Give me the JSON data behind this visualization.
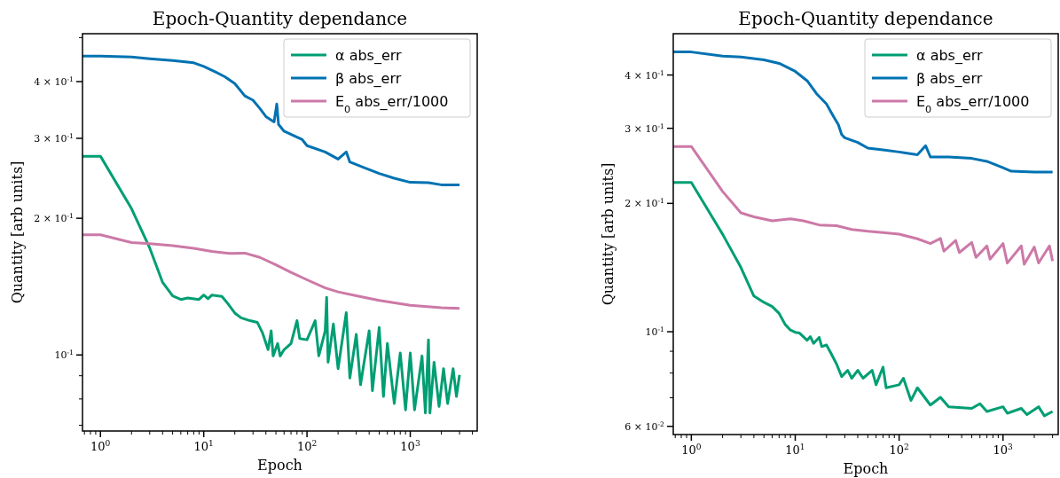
{
  "chart_data": [
    {
      "type": "line",
      "title": "Epoch-Quantity dependance",
      "xlabel": "Epoch",
      "ylabel": "Quantity [arb units]",
      "log": "xy",
      "legend": "top right",
      "xlim": [
        0.67,
        4450
      ],
      "ylim": [
        0.068,
        0.51
      ],
      "xticks": [
        {
          "value": 0.7,
          "label": null
        },
        {
          "value": 0.8,
          "label": null
        },
        {
          "value": 0.9,
          "label": null
        },
        {
          "value": 1,
          "label": "10$^{0}$"
        },
        {
          "value": 2,
          "label": null
        },
        {
          "value": 3,
          "label": null
        },
        {
          "value": 4,
          "label": null
        },
        {
          "value": 5,
          "label": null
        },
        {
          "value": 6,
          "label": null
        },
        {
          "value": 7,
          "label": null
        },
        {
          "value": 8,
          "label": null
        },
        {
          "value": 9,
          "label": null
        },
        {
          "value": 10,
          "label": "10$^{1}$"
        },
        {
          "value": 20,
          "label": null
        },
        {
          "value": 30,
          "label": null
        },
        {
          "value": 40,
          "label": null
        },
        {
          "value": 50,
          "label": null
        },
        {
          "value": 60,
          "label": null
        },
        {
          "value": 70,
          "label": null
        },
        {
          "value": 80,
          "label": null
        },
        {
          "value": 90,
          "label": null
        },
        {
          "value": 100,
          "label": "10$^{2}$"
        },
        {
          "value": 200,
          "label": null
        },
        {
          "value": 300,
          "label": null
        },
        {
          "value": 400,
          "label": null
        },
        {
          "value": 500,
          "label": null
        },
        {
          "value": 600,
          "label": null
        },
        {
          "value": 700,
          "label": null
        },
        {
          "value": 800,
          "label": null
        },
        {
          "value": 900,
          "label": null
        },
        {
          "value": 1000,
          "label": "10$^{3}$"
        },
        {
          "value": 2000,
          "label": null
        },
        {
          "value": 3000,
          "label": null
        },
        {
          "value": 4000,
          "label": null
        }
      ],
      "yticks": [
        {
          "value": 0.07,
          "label": null
        },
        {
          "value": 0.08,
          "label": null
        },
        {
          "value": 0.09,
          "label": null
        },
        {
          "value": 0.1,
          "label": "10$^{-1}$"
        },
        {
          "value": 0.2,
          "label": "2 × 10$^{-1}$"
        },
        {
          "value": 0.3,
          "label": "3 × 10$^{-1}$"
        },
        {
          "value": 0.4,
          "label": "4 × 10$^{-1}$"
        },
        {
          "value": 0.5,
          "label": null
        }
      ],
      "series": [
        {
          "name": "α abs_err",
          "color": "#009e73",
          "x": [
            0.67,
            1,
            2,
            3,
            4,
            5,
            6,
            7,
            9,
            10,
            11,
            12,
            15,
            17,
            20,
            23,
            28,
            33,
            37,
            42,
            45,
            47,
            52,
            55,
            60,
            70,
            80,
            85,
            100,
            120,
            130,
            150,
            155,
            160,
            180,
            200,
            240,
            260,
            300,
            330,
            400,
            430,
            500,
            550,
            600,
            700,
            800,
            900,
            1000,
            1100,
            1300,
            1400,
            1500,
            1550,
            1700,
            1900,
            2100,
            2300,
            2600,
            2800,
            3000
          ],
          "values": [
            0.274,
            0.274,
            0.21,
            0.172,
            0.1445,
            0.135,
            0.1325,
            0.1335,
            0.1325,
            0.1355,
            0.133,
            0.1355,
            0.1346,
            0.13,
            0.1237,
            0.1207,
            0.119,
            0.118,
            0.112,
            0.1027,
            0.113,
            0.0995,
            0.106,
            0.0995,
            0.1027,
            0.106,
            0.119,
            0.1087,
            0.108,
            0.119,
            0.0995,
            0.113,
            0.134,
            0.0964,
            0.117,
            0.0933,
            0.124,
            0.089,
            0.111,
            0.086,
            0.113,
            0.0834,
            0.115,
            0.081,
            0.106,
            0.0782,
            0.101,
            0.0757,
            0.101,
            0.0757,
            0.0995,
            0.0745,
            0.108,
            0.0745,
            0.0964,
            0.077,
            0.0933,
            0.0782,
            0.0933,
            0.081,
            0.0904
          ]
        },
        {
          "name": "β abs_err",
          "color": "#0072b2",
          "x": [
            0.67,
            1,
            2,
            3,
            5,
            8,
            10,
            13,
            16,
            20,
            25,
            30,
            35,
            40,
            48,
            51,
            53,
            60,
            75,
            90,
            100,
            150,
            200,
            240,
            260,
            350,
            500,
            700,
            1000,
            1500,
            2000,
            3000
          ],
          "values": [
            0.455,
            0.455,
            0.453,
            0.449,
            0.445,
            0.44,
            0.432,
            0.42,
            0.41,
            0.396,
            0.372,
            0.364,
            0.349,
            0.335,
            0.326,
            0.357,
            0.322,
            0.311,
            0.304,
            0.298,
            0.289,
            0.28,
            0.27,
            0.28,
            0.266,
            0.259,
            0.251,
            0.245,
            0.24,
            0.2395,
            0.237,
            0.237
          ]
        },
        {
          "name": "E$_{0}$ abs_err/1000",
          "color": "#cc79a7",
          "x": [
            0.67,
            1,
            2,
            3,
            5,
            8,
            12,
            18,
            25,
            35,
            50,
            70,
            100,
            150,
            200,
            300,
            500,
            1000,
            2000,
            3000
          ],
          "values": [
            0.184,
            0.184,
            0.1768,
            0.1758,
            0.174,
            0.1718,
            0.169,
            0.1673,
            0.1676,
            0.164,
            0.158,
            0.152,
            0.1464,
            0.1405,
            0.1377,
            0.135,
            0.1319,
            0.1287,
            0.127,
            0.1267
          ]
        }
      ]
    },
    {
      "type": "line",
      "title": "Epoch-Quantity dependance",
      "xlabel": "Epoch",
      "ylabel": "Quantity [arb units]",
      "log": "xy",
      "legend": "top right",
      "xlim": [
        0.67,
        3400
      ],
      "ylim": [
        0.0574,
        0.5
      ],
      "xticks": [
        {
          "value": 0.7,
          "label": null
        },
        {
          "value": 0.8,
          "label": null
        },
        {
          "value": 0.9,
          "label": null
        },
        {
          "value": 1,
          "label": "10$^{0}$"
        },
        {
          "value": 2,
          "label": null
        },
        {
          "value": 3,
          "label": null
        },
        {
          "value": 4,
          "label": null
        },
        {
          "value": 5,
          "label": null
        },
        {
          "value": 6,
          "label": null
        },
        {
          "value": 7,
          "label": null
        },
        {
          "value": 8,
          "label": null
        },
        {
          "value": 9,
          "label": null
        },
        {
          "value": 10,
          "label": "10$^{1}$"
        },
        {
          "value": 20,
          "label": null
        },
        {
          "value": 30,
          "label": null
        },
        {
          "value": 40,
          "label": null
        },
        {
          "value": 50,
          "label": null
        },
        {
          "value": 60,
          "label": null
        },
        {
          "value": 70,
          "label": null
        },
        {
          "value": 80,
          "label": null
        },
        {
          "value": 90,
          "label": null
        },
        {
          "value": 100,
          "label": "10$^{2}$"
        },
        {
          "value": 200,
          "label": null
        },
        {
          "value": 300,
          "label": null
        },
        {
          "value": 400,
          "label": null
        },
        {
          "value": 500,
          "label": null
        },
        {
          "value": 600,
          "label": null
        },
        {
          "value": 700,
          "label": null
        },
        {
          "value": 800,
          "label": null
        },
        {
          "value": 900,
          "label": null
        },
        {
          "value": 1000,
          "label": "10$^{3}$"
        },
        {
          "value": 2000,
          "label": null
        },
        {
          "value": 3000,
          "label": null
        }
      ],
      "yticks": [
        {
          "value": 0.06,
          "label": "6 × 10$^{-2}$"
        },
        {
          "value": 0.07,
          "label": null
        },
        {
          "value": 0.08,
          "label": null
        },
        {
          "value": 0.09,
          "label": null
        },
        {
          "value": 0.1,
          "label": "10$^{-1}$"
        },
        {
          "value": 0.2,
          "label": "2 × 10$^{-1}$"
        },
        {
          "value": 0.3,
          "label": "3 × 10$^{-1}$"
        },
        {
          "value": 0.4,
          "label": "4 × 10$^{-1}$"
        }
      ],
      "series": [
        {
          "name": "α abs_err",
          "color": "#009e73",
          "x": [
            0.67,
            1,
            2,
            3,
            4,
            5,
            6,
            7,
            8,
            9,
            10,
            11,
            13,
            14,
            15,
            17,
            18,
            20,
            22,
            25,
            28,
            32,
            35,
            40,
            45,
            55,
            60,
            70,
            75,
            100,
            110,
            130,
            150,
            200,
            250,
            300,
            500,
            600,
            700,
            1000,
            1100,
            1500,
            1700,
            2200,
            2500,
            3000
          ],
          "values": [
            0.224,
            0.224,
            0.1693,
            0.1415,
            0.1213,
            0.1172,
            0.1146,
            0.1104,
            0.104,
            0.1009,
            0.0997,
            0.0993,
            0.0955,
            0.0974,
            0.0939,
            0.097,
            0.0923,
            0.0931,
            0.0892,
            0.084,
            0.0785,
            0.0812,
            0.0778,
            0.0812,
            0.0778,
            0.0812,
            0.0751,
            0.0826,
            0.0739,
            0.0751,
            0.0778,
            0.069,
            0.0739,
            0.0673,
            0.0702,
            0.0667,
            0.0661,
            0.0678,
            0.065,
            0.0667,
            0.0644,
            0.0661,
            0.0639,
            0.0667,
            0.0635,
            0.065
          ]
        },
        {
          "name": "β abs_err",
          "color": "#0072b2",
          "x": [
            0.67,
            1,
            2,
            3,
            5,
            7,
            10,
            13,
            16,
            20,
            23,
            26,
            28,
            30,
            40,
            50,
            70,
            100,
            150,
            180,
            200,
            300,
            500,
            700,
            1000,
            1200,
            2000,
            3000
          ],
          "values": [
            0.453,
            0.453,
            0.443,
            0.441,
            0.434,
            0.426,
            0.408,
            0.388,
            0.362,
            0.342,
            0.322,
            0.306,
            0.29,
            0.285,
            0.278,
            0.2695,
            0.267,
            0.264,
            0.26,
            0.273,
            0.257,
            0.257,
            0.255,
            0.251,
            0.2425,
            0.238,
            0.237,
            0.237
          ]
        },
        {
          "name": "E$_{0}$ abs_err/1000",
          "color": "#cc79a7",
          "x": [
            0.67,
            1,
            2,
            3,
            4,
            6,
            9,
            12,
            17,
            25,
            35,
            50,
            70,
            100,
            150,
            200,
            250,
            270,
            350,
            380,
            500,
            550,
            700,
            750,
            1000,
            1100,
            1500,
            1600,
            2000,
            2200,
            2800,
            3000
          ],
          "values": [
            0.272,
            0.272,
            0.2133,
            0.19,
            0.186,
            0.182,
            0.184,
            0.182,
            0.178,
            0.1773,
            0.1737,
            0.172,
            0.1708,
            0.1694,
            0.1652,
            0.161,
            0.1655,
            0.1545,
            0.1637,
            0.1534,
            0.162,
            0.1494,
            0.159,
            0.148,
            0.161,
            0.1449,
            0.159,
            0.144,
            0.158,
            0.145,
            0.159,
            0.1465
          ]
        }
      ]
    }
  ]
}
